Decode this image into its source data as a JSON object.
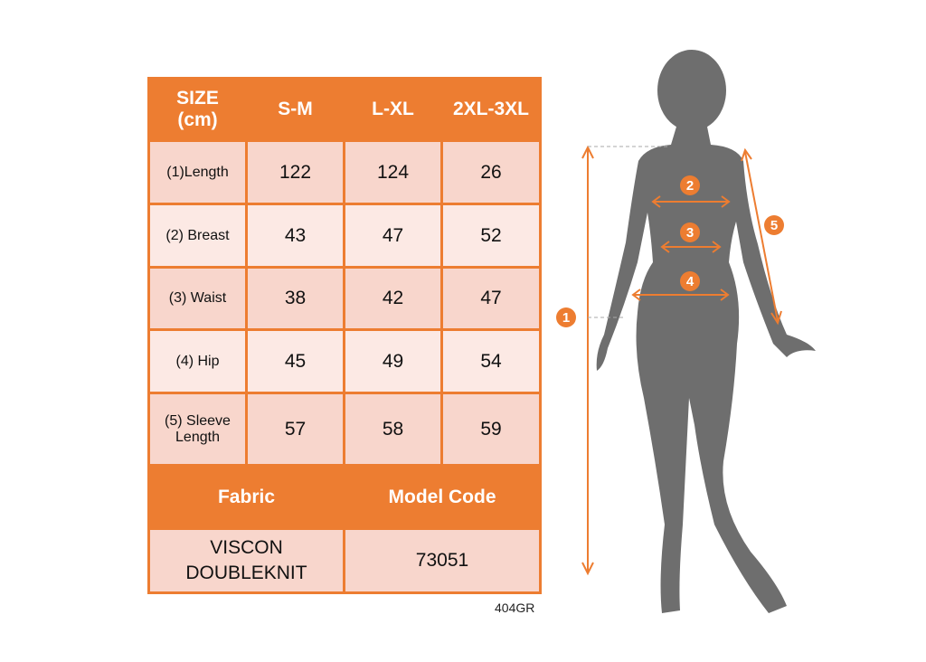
{
  "table": {
    "header": [
      "SIZE\n(cm)",
      "S-M",
      "L-XL",
      "2XL-3XL"
    ],
    "header_size_line1": "SIZE",
    "header_size_line2": "(cm)",
    "rows": [
      {
        "label": "(1)Length",
        "values": [
          "122",
          "124",
          "26"
        ]
      },
      {
        "label": "(2) Breast",
        "values": [
          "43",
          "47",
          "52"
        ]
      },
      {
        "label": "(3) Waist",
        "values": [
          "38",
          "42",
          "47"
        ]
      },
      {
        "label": "(4) Hip",
        "values": [
          "45",
          "49",
          "54"
        ]
      },
      {
        "label_line1": "(5) Sleeve",
        "label_line2": "Length",
        "values": [
          "57",
          "58",
          "59"
        ]
      }
    ],
    "fabric_header": "Fabric",
    "model_code_header": "Model Code",
    "fabric_line1": "VISCON",
    "fabric_line2": "DOUBLEKNIT",
    "model_code": "73051"
  },
  "product_code": "404GR",
  "figure": {
    "markers": [
      "1",
      "2",
      "3",
      "4",
      "5"
    ]
  },
  "colors": {
    "accent": "#ed7d31",
    "row_dark": "#f8d6cc",
    "row_light": "#fce9e4",
    "silhouette": "#6e6e6e"
  }
}
